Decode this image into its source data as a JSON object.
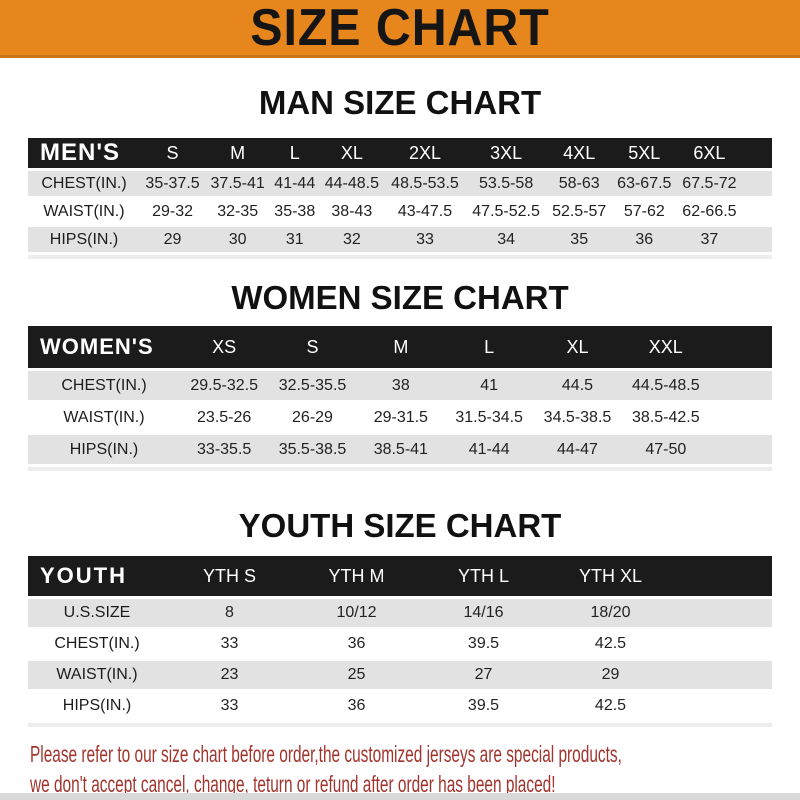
{
  "banner": {
    "title": "SIZE CHART",
    "bg_color": "#E8861E",
    "border_color": "#C9761B",
    "text_color": "#151515"
  },
  "sections": [
    {
      "id": "man",
      "title": "MAN SIZE CHART",
      "table": {
        "corner_label": "MEN'S",
        "columns": [
          "S",
          "M",
          "L",
          "XL",
          "2XL",
          "3XL",
          "4XL",
          "5XL",
          "6XL"
        ],
        "rows": [
          {
            "label": "CHEST(IN.)",
            "values": [
              "35-37.5",
              "37.5-41",
              "41-44",
              "44-48.5",
              "48.5-53.5",
              "53.5-58",
              "58-63",
              "63-67.5",
              "67.5-72"
            ]
          },
          {
            "label": "WAIST(IN.)",
            "values": [
              "29-32",
              "32-35",
              "35-38",
              "38-43",
              "43-47.5",
              "47.5-52.5",
              "52.5-57",
              "57-62",
              "62-66.5"
            ]
          },
          {
            "label": "HIPS(IN.)",
            "values": [
              "29",
              "30",
              "31",
              "32",
              "33",
              "34",
              "35",
              "36",
              "37"
            ]
          }
        ]
      }
    },
    {
      "id": "women",
      "title": "WOMEN SIZE CHART",
      "table": {
        "corner_label": "WOMEN'S",
        "columns": [
          "XS",
          "S",
          "M",
          "L",
          "XL",
          "XXL"
        ],
        "rows": [
          {
            "label": "CHEST(IN.)",
            "values": [
              "29.5-32.5",
              "32.5-35.5",
              "38",
              "41",
              "44.5",
              "44.5-48.5"
            ]
          },
          {
            "label": "WAIST(IN.)",
            "values": [
              "23.5-26",
              "26-29",
              "29-31.5",
              "31.5-34.5",
              "34.5-38.5",
              "38.5-42.5"
            ]
          },
          {
            "label": "HIPS(IN.)",
            "values": [
              "33-35.5",
              "35.5-38.5",
              "38.5-41",
              "41-44",
              "44-47",
              "47-50"
            ]
          }
        ]
      }
    },
    {
      "id": "youth",
      "title": "YOUTH SIZE CHART",
      "table": {
        "corner_label": "YOUTH",
        "columns": [
          "YTH S",
          "YTH M",
          "YTH L",
          "YTH XL"
        ],
        "rows": [
          {
            "label": "U.S.SIZE",
            "values": [
              "8",
              "10/12",
              "14/16",
              "18/20"
            ]
          },
          {
            "label": "CHEST(IN.)",
            "values": [
              "33",
              "36",
              "39.5",
              "42.5"
            ]
          },
          {
            "label": "WAIST(IN.)",
            "values": [
              "23",
              "25",
              "27",
              "29"
            ]
          },
          {
            "label": "HIPS(IN.)",
            "values": [
              "33",
              "36",
              "39.5",
              "42.5"
            ]
          }
        ]
      }
    }
  ],
  "footer": {
    "line1": "Please refer to our size chart before order,the customized jerseys are special products,",
    "line2": "we don't accept cancel, change, teturn or refund after order has been placed!",
    "text_color": "#A2342D"
  },
  "colors": {
    "table_header_bar": "#1B1B1B",
    "row_shaded": "#E2E2E2",
    "row_plain": "#FFFFFF",
    "bottom_strip": "#D9D9D9"
  }
}
